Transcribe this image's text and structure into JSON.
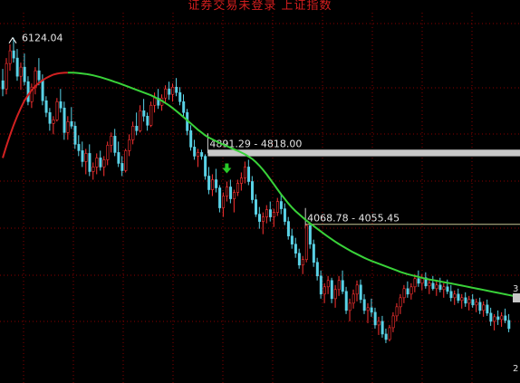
{
  "title": "证券交易未登录  上证指数",
  "chart_data": {
    "type": "candlestick",
    "title": "上证指数",
    "ylim": [
      2600,
      6400
    ],
    "peak_label": "6124.04",
    "levels": [
      {
        "label": "4891.29 - 4818.00",
        "from": 4891.29,
        "to": 4818.0,
        "start_index": 57,
        "kind": "band"
      },
      {
        "label": "4068.78 - 4055.45",
        "from": 4068.78,
        "to": 4055.45,
        "start_index": 84,
        "kind": "line"
      }
    ],
    "edge_label_top": "3",
    "edge_label_bottom": "2",
    "ma": {
      "start_index": 0,
      "colors": {
        "below": "#d22121",
        "above": "#39d239"
      },
      "values": [
        4800,
        4930,
        5050,
        5160,
        5260,
        5350,
        5430,
        5490,
        5545,
        5590,
        5625,
        5655,
        5680,
        5700,
        5718,
        5728,
        5735,
        5738,
        5740,
        5740,
        5738,
        5735,
        5730,
        5725,
        5718,
        5710,
        5700,
        5690,
        5678,
        5665,
        5652,
        5638,
        5625,
        5610,
        5595,
        5580,
        5565,
        5550,
        5535,
        5520,
        5505,
        5490,
        5470,
        5450,
        5430,
        5405,
        5380,
        5350,
        5318,
        5285,
        5250,
        5215,
        5180,
        5145,
        5110,
        5080,
        5050,
        5025,
        5005,
        4985,
        4965,
        4948,
        4930,
        4912,
        4895,
        4878,
        4860,
        4840,
        4815,
        4790,
        4755,
        4715,
        4670,
        4620,
        4565,
        4510,
        4455,
        4400,
        4350,
        4300,
        4255,
        4215,
        4180,
        4145,
        4110,
        4080,
        4050,
        4020,
        3990,
        3960,
        3932,
        3905,
        3878,
        3852,
        3828,
        3805,
        3782,
        3760,
        3740,
        3720,
        3700,
        3682,
        3665,
        3650,
        3635,
        3620,
        3605,
        3590,
        3575,
        3560,
        3545,
        3532,
        3520,
        3510,
        3500,
        3490,
        3480,
        3470,
        3462,
        3455,
        3448,
        3440,
        3432,
        3425,
        3418,
        3410,
        3402,
        3394,
        3386,
        3378,
        3370,
        3362,
        3354,
        3346,
        3338,
        3330,
        3322,
        3314,
        3306,
        3298,
        3290,
        3282,
        3274,
        3266
      ]
    },
    "ma_colors_split_index": 18,
    "candles": [
      {
        "o": 5650,
        "h": 5780,
        "l": 5480,
        "c": 5560
      },
      {
        "o": 5560,
        "h": 5900,
        "l": 5500,
        "c": 5840
      },
      {
        "o": 5840,
        "h": 6050,
        "l": 5760,
        "c": 5980
      },
      {
        "o": 5980,
        "h": 6124.04,
        "l": 5850,
        "c": 5900
      },
      {
        "o": 5900,
        "h": 6000,
        "l": 5650,
        "c": 5700
      },
      {
        "o": 5700,
        "h": 5850,
        "l": 5550,
        "c": 5800
      },
      {
        "o": 5800,
        "h": 5950,
        "l": 5600,
        "c": 5640
      },
      {
        "o": 5640,
        "h": 5700,
        "l": 5380,
        "c": 5420
      },
      {
        "o": 5420,
        "h": 5620,
        "l": 5350,
        "c": 5580
      },
      {
        "o": 5580,
        "h": 5800,
        "l": 5500,
        "c": 5760
      },
      {
        "o": 5760,
        "h": 5900,
        "l": 5600,
        "c": 5660
      },
      {
        "o": 5660,
        "h": 5720,
        "l": 5380,
        "c": 5430
      },
      {
        "o": 5430,
        "h": 5480,
        "l": 5250,
        "c": 5300
      },
      {
        "o": 5300,
        "h": 5350,
        "l": 5100,
        "c": 5180
      },
      {
        "o": 5180,
        "h": 5260,
        "l": 5060,
        "c": 5220
      },
      {
        "o": 5220,
        "h": 5460,
        "l": 5200,
        "c": 5420
      },
      {
        "o": 5420,
        "h": 5560,
        "l": 5300,
        "c": 5350
      },
      {
        "o": 5350,
        "h": 5420,
        "l": 5000,
        "c": 5080
      },
      {
        "o": 5080,
        "h": 5260,
        "l": 5000,
        "c": 5200
      },
      {
        "o": 5200,
        "h": 5360,
        "l": 5120,
        "c": 5150
      },
      {
        "o": 5150,
        "h": 5200,
        "l": 4900,
        "c": 4950
      },
      {
        "o": 4950,
        "h": 5050,
        "l": 4820,
        "c": 4880
      },
      {
        "o": 4880,
        "h": 4980,
        "l": 4700,
        "c": 4760
      },
      {
        "o": 4760,
        "h": 4900,
        "l": 4620,
        "c": 4850
      },
      {
        "o": 4850,
        "h": 4950,
        "l": 4600,
        "c": 4650
      },
      {
        "o": 4650,
        "h": 4750,
        "l": 4560,
        "c": 4700
      },
      {
        "o": 4700,
        "h": 4850,
        "l": 4620,
        "c": 4800
      },
      {
        "o": 4800,
        "h": 4880,
        "l": 4660,
        "c": 4700
      },
      {
        "o": 4700,
        "h": 4820,
        "l": 4600,
        "c": 4780
      },
      {
        "o": 4780,
        "h": 4980,
        "l": 4720,
        "c": 4940
      },
      {
        "o": 4940,
        "h": 5080,
        "l": 4860,
        "c": 5040
      },
      {
        "o": 5040,
        "h": 5120,
        "l": 4820,
        "c": 4860
      },
      {
        "o": 4860,
        "h": 4980,
        "l": 4700,
        "c": 4740
      },
      {
        "o": 4740,
        "h": 4820,
        "l": 4600,
        "c": 4660
      },
      {
        "o": 4660,
        "h": 4900,
        "l": 4640,
        "c": 4880
      },
      {
        "o": 4880,
        "h": 5060,
        "l": 4820,
        "c": 5000
      },
      {
        "o": 5000,
        "h": 5200,
        "l": 4950,
        "c": 5150
      },
      {
        "o": 5150,
        "h": 5300,
        "l": 5050,
        "c": 5100
      },
      {
        "o": 5100,
        "h": 5380,
        "l": 5080,
        "c": 5320
      },
      {
        "o": 5320,
        "h": 5450,
        "l": 5200,
        "c": 5260
      },
      {
        "o": 5260,
        "h": 5300,
        "l": 5100,
        "c": 5160
      },
      {
        "o": 5160,
        "h": 5420,
        "l": 5140,
        "c": 5380
      },
      {
        "o": 5380,
        "h": 5520,
        "l": 5300,
        "c": 5460
      },
      {
        "o": 5460,
        "h": 5560,
        "l": 5340,
        "c": 5380
      },
      {
        "o": 5380,
        "h": 5500,
        "l": 5320,
        "c": 5460
      },
      {
        "o": 5460,
        "h": 5600,
        "l": 5400,
        "c": 5560
      },
      {
        "o": 5560,
        "h": 5640,
        "l": 5440,
        "c": 5500
      },
      {
        "o": 5500,
        "h": 5620,
        "l": 5420,
        "c": 5580
      },
      {
        "o": 5580,
        "h": 5680,
        "l": 5480,
        "c": 5520
      },
      {
        "o": 5520,
        "h": 5580,
        "l": 5380,
        "c": 5420
      },
      {
        "o": 5420,
        "h": 5500,
        "l": 5250,
        "c": 5300
      },
      {
        "o": 5300,
        "h": 5340,
        "l": 5050,
        "c": 5100
      },
      {
        "o": 5100,
        "h": 5160,
        "l": 4880,
        "c": 4920
      },
      {
        "o": 4920,
        "h": 5000,
        "l": 4780,
        "c": 4820
      },
      {
        "o": 4820,
        "h": 4900,
        "l": 4700,
        "c": 4860
      },
      {
        "o": 4860,
        "h": 4891.29,
        "l": 4780,
        "c": 4818
      },
      {
        "o": 4818,
        "h": 4840,
        "l": 4560,
        "c": 4600
      },
      {
        "o": 4600,
        "h": 4700,
        "l": 4400,
        "c": 4450
      },
      {
        "o": 4450,
        "h": 4620,
        "l": 4380,
        "c": 4560
      },
      {
        "o": 4560,
        "h": 4680,
        "l": 4420,
        "c": 4470
      },
      {
        "o": 4470,
        "h": 4500,
        "l": 4200,
        "c": 4250
      },
      {
        "o": 4250,
        "h": 4420,
        "l": 4150,
        "c": 4380
      },
      {
        "o": 4380,
        "h": 4540,
        "l": 4320,
        "c": 4480
      },
      {
        "o": 4480,
        "h": 4560,
        "l": 4300,
        "c": 4350
      },
      {
        "o": 4350,
        "h": 4450,
        "l": 4200,
        "c": 4420
      },
      {
        "o": 4420,
        "h": 4560,
        "l": 4380,
        "c": 4520
      },
      {
        "o": 4520,
        "h": 4640,
        "l": 4440,
        "c": 4580
      },
      {
        "o": 4580,
        "h": 4760,
        "l": 4520,
        "c": 4700
      },
      {
        "o": 4700,
        "h": 4780,
        "l": 4500,
        "c": 4540
      },
      {
        "o": 4540,
        "h": 4600,
        "l": 4300,
        "c": 4340
      },
      {
        "o": 4340,
        "h": 4400,
        "l": 4150,
        "c": 4180
      },
      {
        "o": 4180,
        "h": 4260,
        "l": 4020,
        "c": 4100
      },
      {
        "o": 4100,
        "h": 4200,
        "l": 3960,
        "c": 4150
      },
      {
        "o": 4150,
        "h": 4280,
        "l": 4080,
        "c": 4230
      },
      {
        "o": 4230,
        "h": 4320,
        "l": 4100,
        "c": 4150
      },
      {
        "o": 4150,
        "h": 4240,
        "l": 4040,
        "c": 4200
      },
      {
        "o": 4200,
        "h": 4360,
        "l": 4160,
        "c": 4320
      },
      {
        "o": 4320,
        "h": 4400,
        "l": 4180,
        "c": 4240
      },
      {
        "o": 4240,
        "h": 4300,
        "l": 4060,
        "c": 4100
      },
      {
        "o": 4100,
        "h": 4150,
        "l": 3900,
        "c": 3940
      },
      {
        "o": 3940,
        "h": 4020,
        "l": 3800,
        "c": 3850
      },
      {
        "o": 3850,
        "h": 3920,
        "l": 3700,
        "c": 3750
      },
      {
        "o": 3750,
        "h": 3800,
        "l": 3580,
        "c": 3620
      },
      {
        "o": 3620,
        "h": 3720,
        "l": 3520,
        "c": 3680
      },
      {
        "o": 3680,
        "h": 4068.78,
        "l": 3650,
        "c": 4055.45
      },
      {
        "o": 4055.45,
        "h": 4060,
        "l": 3800,
        "c": 3850
      },
      {
        "o": 3850,
        "h": 3900,
        "l": 3600,
        "c": 3650
      },
      {
        "o": 3650,
        "h": 3700,
        "l": 3450,
        "c": 3500
      },
      {
        "o": 3500,
        "h": 3560,
        "l": 3250,
        "c": 3300
      },
      {
        "o": 3300,
        "h": 3420,
        "l": 3200,
        "c": 3380
      },
      {
        "o": 3380,
        "h": 3500,
        "l": 3300,
        "c": 3450
      },
      {
        "o": 3450,
        "h": 3480,
        "l": 3200,
        "c": 3250
      },
      {
        "o": 3250,
        "h": 3400,
        "l": 3150,
        "c": 3350
      },
      {
        "o": 3350,
        "h": 3500,
        "l": 3280,
        "c": 3450
      },
      {
        "o": 3450,
        "h": 3560,
        "l": 3300,
        "c": 3330
      },
      {
        "o": 3330,
        "h": 3380,
        "l": 3080,
        "c": 3120
      },
      {
        "o": 3120,
        "h": 3250,
        "l": 3000,
        "c": 3200
      },
      {
        "o": 3200,
        "h": 3350,
        "l": 3140,
        "c": 3300
      },
      {
        "o": 3300,
        "h": 3450,
        "l": 3220,
        "c": 3400
      },
      {
        "o": 3400,
        "h": 3460,
        "l": 3200,
        "c": 3240
      },
      {
        "o": 3240,
        "h": 3300,
        "l": 3080,
        "c": 3120
      },
      {
        "o": 3120,
        "h": 3200,
        "l": 2980,
        "c": 3150
      },
      {
        "o": 3150,
        "h": 3250,
        "l": 3050,
        "c": 3100
      },
      {
        "o": 3100,
        "h": 3150,
        "l": 2920,
        "c": 2960
      },
      {
        "o": 2960,
        "h": 3050,
        "l": 2850,
        "c": 3000
      },
      {
        "o": 3000,
        "h": 3060,
        "l": 2820,
        "c": 2860
      },
      {
        "o": 2860,
        "h": 2920,
        "l": 2760,
        "c": 2800
      },
      {
        "o": 2800,
        "h": 2960,
        "l": 2780,
        "c": 2930
      },
      {
        "o": 2930,
        "h": 3100,
        "l": 2880,
        "c": 3060
      },
      {
        "o": 3060,
        "h": 3200,
        "l": 3000,
        "c": 3160
      },
      {
        "o": 3160,
        "h": 3300,
        "l": 3080,
        "c": 3260
      },
      {
        "o": 3260,
        "h": 3400,
        "l": 3200,
        "c": 3360
      },
      {
        "o": 3360,
        "h": 3440,
        "l": 3260,
        "c": 3300
      },
      {
        "o": 3300,
        "h": 3420,
        "l": 3240,
        "c": 3380
      },
      {
        "o": 3380,
        "h": 3520,
        "l": 3320,
        "c": 3470
      },
      {
        "o": 3470,
        "h": 3560,
        "l": 3380,
        "c": 3420
      },
      {
        "o": 3420,
        "h": 3520,
        "l": 3340,
        "c": 3480
      },
      {
        "o": 3480,
        "h": 3540,
        "l": 3360,
        "c": 3390
      },
      {
        "o": 3390,
        "h": 3460,
        "l": 3300,
        "c": 3420
      },
      {
        "o": 3420,
        "h": 3500,
        "l": 3340,
        "c": 3360
      },
      {
        "o": 3360,
        "h": 3440,
        "l": 3280,
        "c": 3400
      },
      {
        "o": 3400,
        "h": 3480,
        "l": 3320,
        "c": 3350
      },
      {
        "o": 3350,
        "h": 3420,
        "l": 3260,
        "c": 3380
      },
      {
        "o": 3380,
        "h": 3460,
        "l": 3300,
        "c": 3330
      },
      {
        "o": 3330,
        "h": 3400,
        "l": 3220,
        "c": 3260
      },
      {
        "o": 3260,
        "h": 3340,
        "l": 3180,
        "c": 3300
      },
      {
        "o": 3300,
        "h": 3360,
        "l": 3200,
        "c": 3230
      },
      {
        "o": 3230,
        "h": 3300,
        "l": 3140,
        "c": 3260
      },
      {
        "o": 3260,
        "h": 3320,
        "l": 3160,
        "c": 3200
      },
      {
        "o": 3200,
        "h": 3280,
        "l": 3120,
        "c": 3240
      },
      {
        "o": 3240,
        "h": 3300,
        "l": 3150,
        "c": 3180
      },
      {
        "o": 3180,
        "h": 3250,
        "l": 3100,
        "c": 3210
      },
      {
        "o": 3210,
        "h": 3260,
        "l": 3080,
        "c": 3120
      },
      {
        "o": 3120,
        "h": 3220,
        "l": 3050,
        "c": 3180
      },
      {
        "o": 3180,
        "h": 3240,
        "l": 3060,
        "c": 3090
      },
      {
        "o": 3090,
        "h": 3150,
        "l": 2950,
        "c": 3000
      },
      {
        "o": 3000,
        "h": 3080,
        "l": 2900,
        "c": 3050
      },
      {
        "o": 3050,
        "h": 3120,
        "l": 2960,
        "c": 3020
      },
      {
        "o": 3020,
        "h": 3100,
        "l": 2940,
        "c": 3060
      },
      {
        "o": 3060,
        "h": 3140,
        "l": 2980,
        "c": 3010
      },
      {
        "o": 3010,
        "h": 3080,
        "l": 2880,
        "c": 2920
      }
    ],
    "arrow_index": 62,
    "colors": {
      "up": "#ff3232",
      "down": "#5ad2e6",
      "grid": "#8a0000",
      "band": "#c8c8c8",
      "line": "#c8c896",
      "arrow": "#28c828"
    },
    "grid": true
  }
}
